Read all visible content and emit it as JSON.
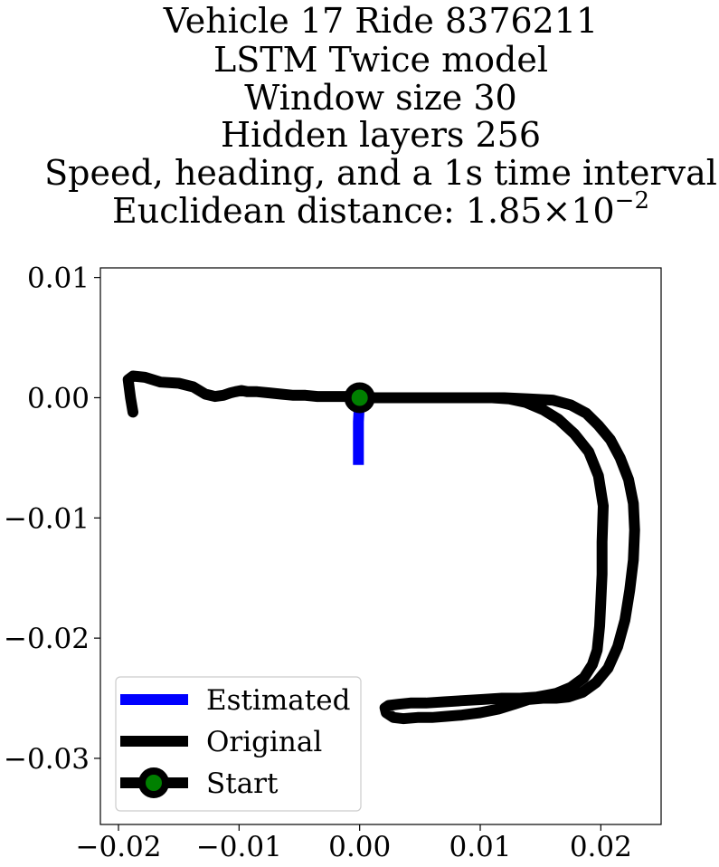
{
  "chart_data": {
    "type": "line",
    "title_lines": [
      "Vehicle 17 Ride 8376211",
      "LSTM Twice model",
      "Window size 30",
      "Hidden layers 256",
      "Speed, heading, and a 1s time interval"
    ],
    "distance_label": "Euclidean distance: ",
    "distance_mantissa": "1.85",
    "distance_times": "×",
    "distance_base": "10",
    "distance_exponent": "−2",
    "xlabel": "",
    "ylabel": "",
    "xlim": [
      -0.0215,
      0.025
    ],
    "ylim": [
      -0.0355,
      0.0108
    ],
    "xticks": [
      -0.02,
      -0.01,
      0.0,
      0.01,
      0.02
    ],
    "xtick_labels": [
      "−0.02",
      "−0.01",
      "0.00",
      "0.01",
      "0.02"
    ],
    "yticks": [
      0.01,
      0.0,
      -0.01,
      -0.02,
      -0.03
    ],
    "ytick_labels": [
      "0.01",
      "0.00",
      "−0.01",
      "−0.02",
      "−0.03"
    ],
    "grid": false,
    "legend_position": "lower-left",
    "series": [
      {
        "name": "Estimated",
        "color": "#0000ff",
        "x": [
          0.0,
          -0.0001,
          -0.0001,
          -0.0001
        ],
        "y": [
          0.0,
          -0.002,
          -0.004,
          -0.0056
        ]
      },
      {
        "name": "Original",
        "color": "#000000",
        "x": [
          -0.0188,
          -0.019,
          -0.0192,
          -0.0188,
          -0.0178,
          -0.0165,
          -0.015,
          -0.0138,
          -0.0128,
          -0.012,
          -0.0113,
          -0.0107,
          -0.0103,
          -0.0098,
          -0.0093,
          -0.0085,
          -0.0075,
          -0.0065,
          -0.0055,
          -0.0045,
          -0.0035,
          -0.0025,
          -0.0015,
          -0.0005,
          0.0,
          0.001,
          0.003,
          0.005,
          0.007,
          0.009,
          0.011,
          0.012,
          0.014,
          0.016,
          0.0175,
          0.0188,
          0.0198,
          0.0208,
          0.0216,
          0.0223,
          0.0227,
          0.0228,
          0.0227,
          0.0224,
          0.022,
          0.0214,
          0.0206,
          0.0196,
          0.0185,
          0.0173,
          0.0163,
          0.0152,
          0.014,
          0.0128,
          0.0115,
          0.01,
          0.0085,
          0.0072,
          0.006,
          0.0048,
          0.0036,
          0.0028,
          0.0022,
          0.0021,
          0.0024,
          0.0032,
          0.0042,
          0.0055,
          0.007,
          0.0085,
          0.0102,
          0.0118,
          0.0133,
          0.0147,
          0.0163,
          0.0175,
          0.0186,
          0.0193,
          0.0197,
          0.0199,
          0.02,
          0.0201,
          0.0201,
          0.0202,
          0.0198,
          0.019,
          0.0178,
          0.0165,
          0.0152,
          0.0138,
          0.0124,
          0.011,
          0.0095,
          0.008,
          0.0065,
          0.005,
          0.0035,
          0.002,
          0.001,
          0.0
        ],
        "y": [
          -0.0012,
          0.0,
          0.0015,
          0.0018,
          0.0017,
          0.0013,
          0.0012,
          0.0009,
          0.0003,
          0.0001,
          0.0002,
          0.0004,
          0.0005,
          0.0006,
          0.0005,
          0.0005,
          0.0004,
          0.0003,
          0.0002,
          0.0002,
          0.0001,
          0.0001,
          0.0001,
          0.0001,
          0.0,
          0.0,
          0.0,
          0.0,
          0.0,
          0.0,
          0.0,
          0.0,
          -0.0001,
          -0.0002,
          -0.0006,
          -0.0013,
          -0.0023,
          -0.0035,
          -0.005,
          -0.0068,
          -0.0088,
          -0.011,
          -0.0135,
          -0.016,
          -0.0185,
          -0.0207,
          -0.0225,
          -0.0237,
          -0.0245,
          -0.0249,
          -0.025,
          -0.025,
          -0.0251,
          -0.0255,
          -0.0259,
          -0.0262,
          -0.0264,
          -0.0265,
          -0.0266,
          -0.0266,
          -0.0267,
          -0.0266,
          -0.0262,
          -0.0258,
          -0.0256,
          -0.0255,
          -0.0254,
          -0.0254,
          -0.0253,
          -0.0252,
          -0.0251,
          -0.025,
          -0.025,
          -0.0249,
          -0.0246,
          -0.0241,
          -0.0233,
          -0.0222,
          -0.021,
          -0.019,
          -0.017,
          -0.0147,
          -0.012,
          -0.009,
          -0.0065,
          -0.0045,
          -0.003,
          -0.0018,
          -0.001,
          -0.0004,
          -0.0001,
          0.0,
          0.0,
          0.0,
          0.0,
          0.0,
          0.0,
          0.0,
          0.0,
          0.0
        ]
      },
      {
        "name": "Start",
        "marker_face": "#008000",
        "marker_edge": "#000000",
        "x": [
          0.0
        ],
        "y": [
          0.0
        ]
      }
    ]
  }
}
